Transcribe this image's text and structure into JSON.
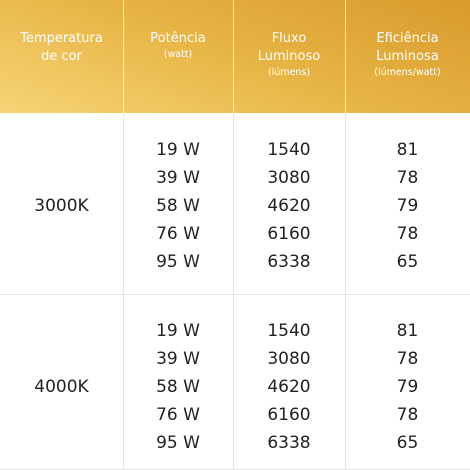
{
  "header": {
    "columns": [
      {
        "title": "Temperatura de cor"
      },
      {
        "title": "Potência",
        "unit": "(watt)"
      },
      {
        "title": "Fluxo Luminoso",
        "unit": "(lúmens)"
      },
      {
        "title": "Eficiência Luminosa",
        "unit": "(lúmens/watt)"
      }
    ]
  },
  "table": {
    "groups": [
      {
        "temperature": "3000K",
        "rows": [
          [
            "19 W",
            "1540",
            "81"
          ],
          [
            "39 W",
            "3080",
            "78"
          ],
          [
            "58 W",
            "4620",
            "79"
          ],
          [
            "76 W",
            "6160",
            "78"
          ],
          [
            "95 W",
            "6338",
            "65"
          ]
        ]
      },
      {
        "temperature": "4000K",
        "rows": [
          [
            "19 W",
            "1540",
            "81"
          ],
          [
            "39 W",
            "3080",
            "78"
          ],
          [
            "58 W",
            "4620",
            "79"
          ],
          [
            "76 W",
            "6160",
            "78"
          ],
          [
            "95 W",
            "6338",
            "65"
          ]
        ]
      }
    ]
  }
}
